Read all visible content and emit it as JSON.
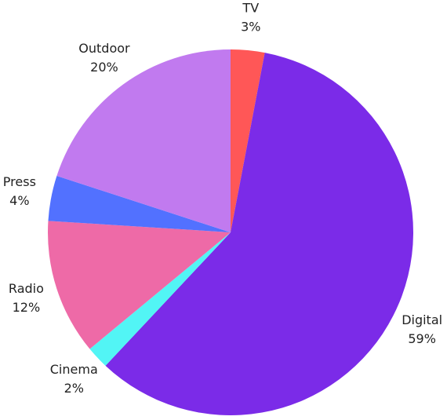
{
  "chart_data": {
    "type": "pie",
    "categories": [
      "TV",
      "Digital",
      "Cinema",
      "Radio",
      "Press",
      "Outdoor"
    ],
    "values": [
      3,
      59,
      2,
      12,
      4,
      20
    ],
    "value_labels": [
      "3%",
      "59%",
      "2%",
      "12%",
      "4%",
      "20%"
    ],
    "colors": [
      "#ff5757",
      "#7b2be8",
      "#52f5f5",
      "#ee6aa7",
      "#5271ff",
      "#c17aef"
    ]
  }
}
